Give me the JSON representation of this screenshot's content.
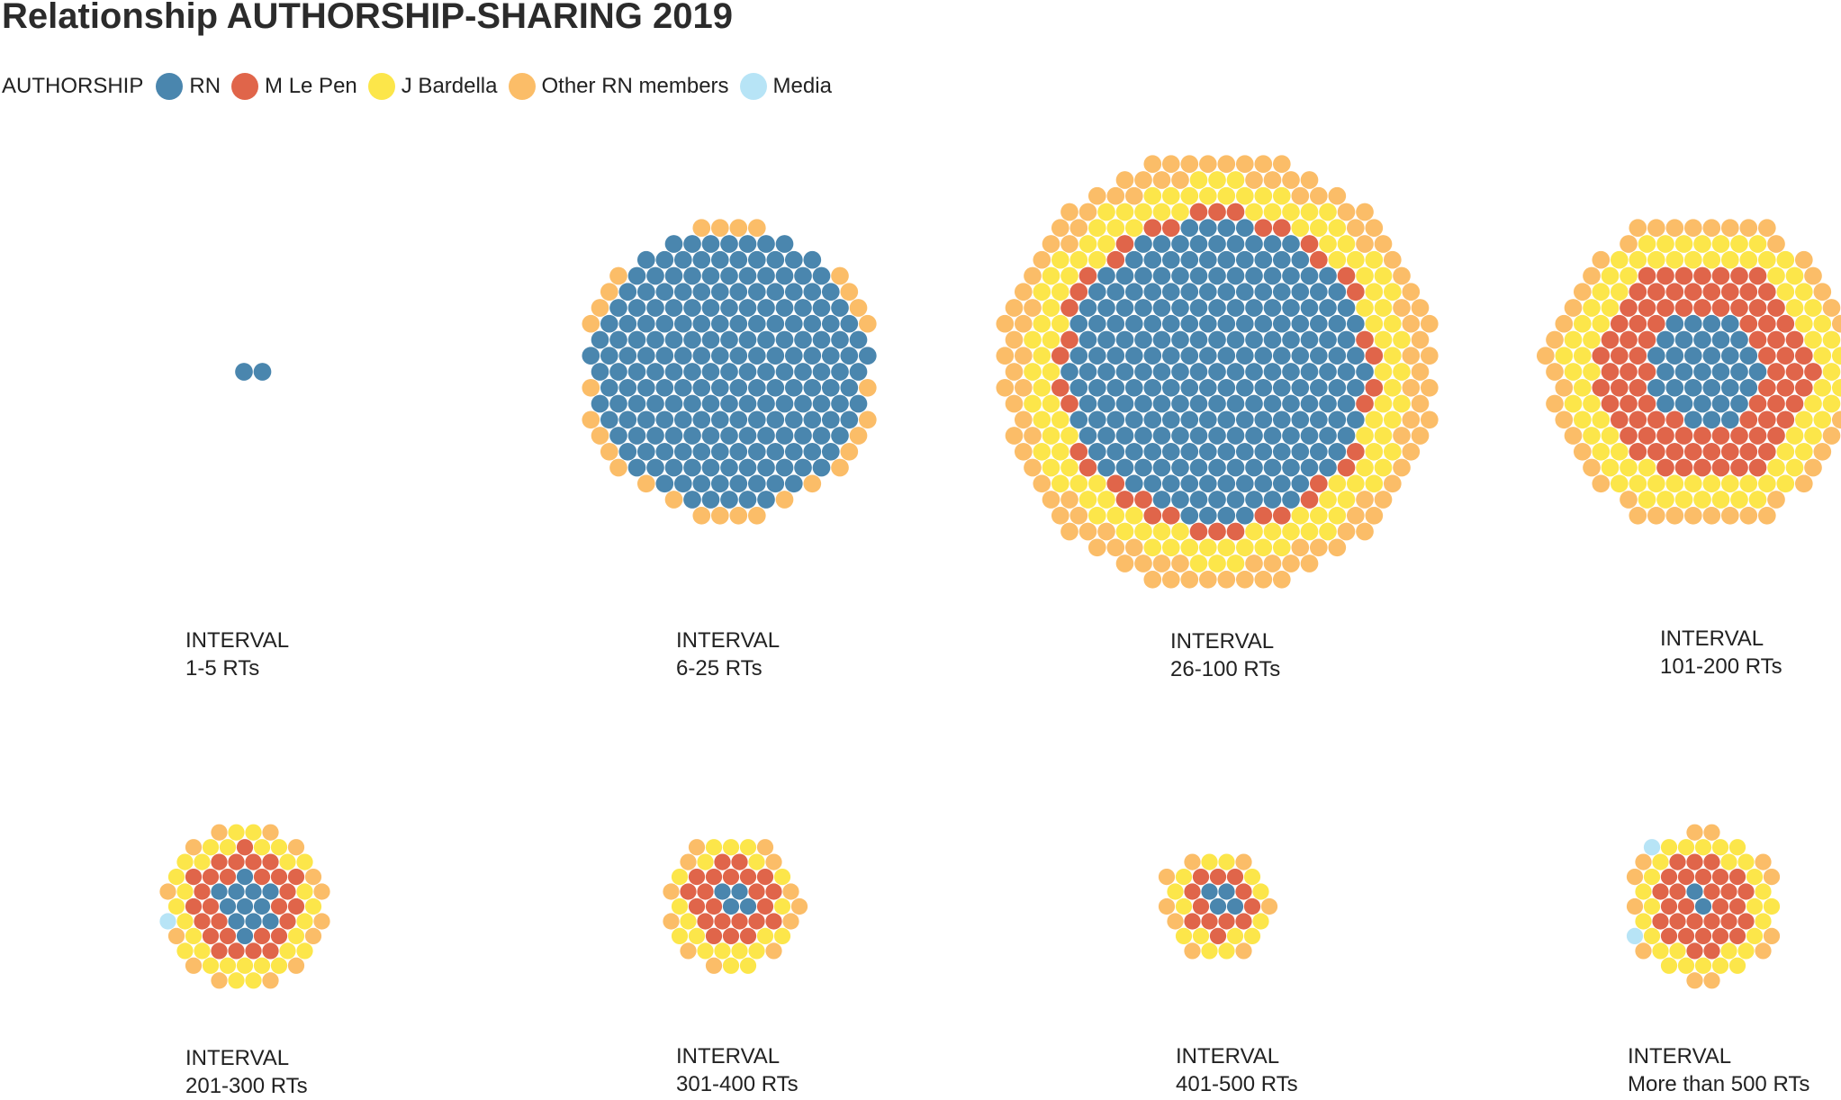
{
  "title": "Relationship AUTHORSHIP-SHARING 2019",
  "legend": {
    "heading": "AUTHORSHIP",
    "items": [
      {
        "key": "rn",
        "label": "RN",
        "color": "#4a86ae"
      },
      {
        "key": "lepen",
        "label": "M Le Pen",
        "color": "#e0654a"
      },
      {
        "key": "bardella",
        "label": "J Bardella",
        "color": "#fce64a"
      },
      {
        "key": "other",
        "label": "Other RN members",
        "color": "#fbbd68"
      },
      {
        "key": "media",
        "label": "Media",
        "color": "#b7e4f6"
      }
    ]
  },
  "chart_data": {
    "type": "packed-circle (dot)",
    "title": "Relationship AUTHORSHIP-SHARING 2019",
    "unit": "one dot = one tweet (approximate counts)",
    "categories": [
      "RN",
      "M Le Pen",
      "J Bardella",
      "Other RN members",
      "Media"
    ],
    "panels": [
      {
        "heading": "INTERVAL",
        "range": "1-5 RTs",
        "counts": {
          "RN": 2,
          "M Le Pen": 0,
          "J Bardella": 0,
          "Other RN members": 0,
          "Media": 0
        }
      },
      {
        "heading": "INTERVAL",
        "range": "6-25 RTs",
        "counts": {
          "RN": 205,
          "M Le Pen": 0,
          "J Bardella": 0,
          "Other RN members": 30,
          "Media": 0
        }
      },
      {
        "heading": "INTERVAL",
        "range": "26-100 RTs",
        "counts": {
          "RN": 240,
          "M Le Pen": 40,
          "J Bardella": 120,
          "Other RN members": 110,
          "Media": 0
        }
      },
      {
        "heading": "INTERVAL",
        "range": "101-200 RTs",
        "counts": {
          "RN": 35,
          "M Le Pen": 90,
          "J Bardella": 85,
          "Other RN members": 50,
          "Media": 0
        }
      },
      {
        "heading": "INTERVAL",
        "range": "201-300 RTs",
        "counts": {
          "RN": 12,
          "M Le Pen": 28,
          "J Bardella": 30,
          "Other RN members": 14,
          "Media": 1
        }
      },
      {
        "heading": "INTERVAL",
        "range": "301-400 RTs",
        "counts": {
          "RN": 4,
          "M Le Pen": 22,
          "J Bardella": 20,
          "Other RN members": 12,
          "Media": 0
        }
      },
      {
        "heading": "INTERVAL",
        "range": "401-500 RTs",
        "counts": {
          "RN": 4,
          "M Le Pen": 12,
          "J Bardella": 14,
          "Other RN members": 8,
          "Media": 0
        }
      },
      {
        "heading": "INTERVAL",
        "range": "More than 500 RTs",
        "counts": {
          "RN": 2,
          "M Le Pen": 30,
          "J Bardella": 28,
          "Other RN members": 12,
          "Media": 2
        }
      }
    ]
  }
}
